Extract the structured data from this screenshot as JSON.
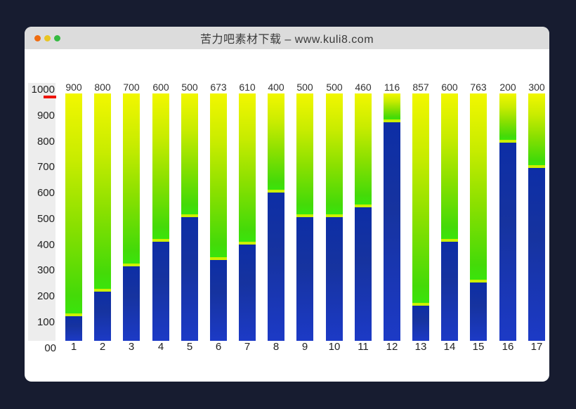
{
  "window": {
    "title": "苦力吧素材下载 – www.kuli8.com",
    "controls": [
      {
        "name": "close",
        "color": "#ef6c0f"
      },
      {
        "name": "minimize",
        "color": "#e9c522"
      },
      {
        "name": "maximize",
        "color": "#35ba41"
      }
    ]
  },
  "colors": {
    "desktop_bg": "#171c30",
    "titlebar_bg": "#dcdcdc",
    "window_bg": "#ffffff",
    "axis_panel_bg": "#ededed",
    "tick_text": "#222222",
    "bar_label_text": "#333333",
    "red_marker": "#ee1409",
    "green_gradient_top": "#f2f700",
    "green_gradient_bottom": "#3ae40c",
    "junction_line": "#ccf000",
    "blue_top": "#0d2ea6",
    "blue_bottom": "#1c3ac6"
  },
  "chart_data": {
    "type": "bar",
    "subtype": "stacked-vertical",
    "title": "",
    "xlabel": "",
    "ylabel": "",
    "ylim": [
      0,
      1000
    ],
    "grid": false,
    "legend": null,
    "categories": [
      "1",
      "2",
      "3",
      "4",
      "5",
      "6",
      "7",
      "8",
      "9",
      "10",
      "11",
      "12",
      "13",
      "14",
      "15",
      "16",
      "17"
    ],
    "series": [
      {
        "name": "bottom-blue-segment",
        "color": "#16339f",
        "values": [
          100,
          200,
          300,
          400,
          500,
          327,
          390,
          600,
          500,
          500,
          540,
          884,
          143,
          400,
          237,
          800,
          700
        ]
      },
      {
        "name": "top-green-gradient-segment",
        "color": "#8ae000",
        "values": [
          900,
          800,
          700,
          600,
          500,
          673,
          610,
          400,
          500,
          500,
          460,
          116,
          857,
          600,
          763,
          200,
          300
        ]
      }
    ],
    "bar_value_labels": [
      "900",
      "800",
      "700",
      "600",
      "500",
      "673",
      "610",
      "400",
      "500",
      "500",
      "460",
      "116",
      "857",
      "600",
      "763",
      "200",
      "300"
    ],
    "y_ticks": [
      "1000",
      "900",
      "800",
      "700",
      "600",
      "500",
      "400",
      "300",
      "200",
      "100"
    ],
    "origin_label": "00"
  }
}
